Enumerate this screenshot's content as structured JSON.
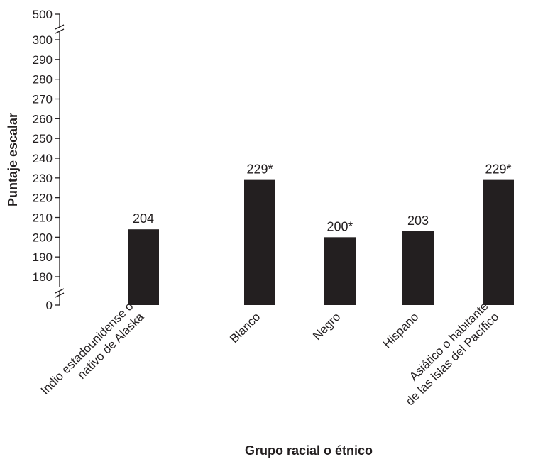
{
  "chart_data": {
    "type": "bar",
    "title": "",
    "xlabel": "Grupo racial o étnico",
    "ylabel": "Puntaje escalar",
    "ylim": [
      180,
      300
    ],
    "axis_break": true,
    "y_ticks": [
      "0",
      "180",
      "190",
      "200",
      "210",
      "220",
      "230",
      "240",
      "250",
      "260",
      "270",
      "280",
      "290",
      "300",
      "500"
    ],
    "categories": [
      [
        "Indio estadounidense o",
        "nativo de Alaska"
      ],
      [
        "Blanco"
      ],
      [
        "Negro"
      ],
      [
        "Hispano"
      ],
      [
        "Asiático o habitante",
        "de las islas del Pacífico"
      ]
    ],
    "values": [
      204,
      229,
      200,
      203,
      229
    ],
    "data_labels": [
      "204",
      "229*",
      "200*",
      "203",
      "229*"
    ],
    "bar_color": "#231f20",
    "grid": false,
    "legend": "none"
  }
}
